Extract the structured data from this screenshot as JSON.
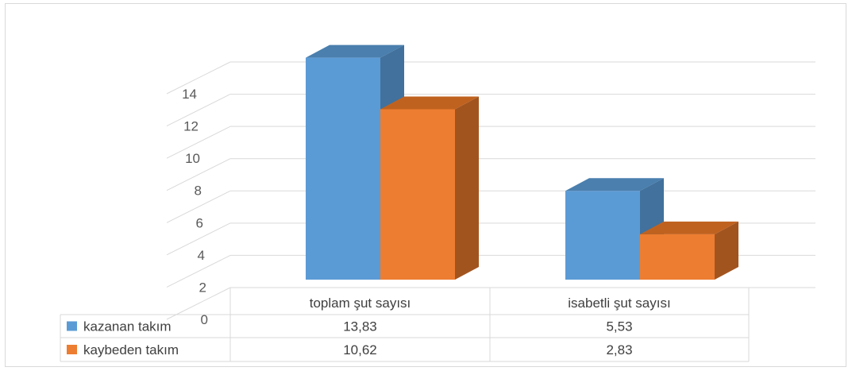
{
  "chart_data": {
    "type": "bar",
    "variant": "3d-clustered-column-with-data-table",
    "categories": [
      "toplam şut sayısı",
      "isabetli şut sayısı"
    ],
    "series": [
      {
        "name": "kazanan takım",
        "values": [
          13.83,
          5.53
        ],
        "labels": [
          "13,83",
          "5,53"
        ],
        "color": "#5b9bd5",
        "color_side": "#41719c",
        "color_top": "#4a7fae"
      },
      {
        "name": "kaybeden takım",
        "values": [
          10.62,
          2.83
        ],
        "labels": [
          "10,62",
          "2,83"
        ],
        "color": "#ed7d31",
        "color_side": "#a2541f",
        "color_top": "#c0621f"
      }
    ],
    "yticks": [
      "0",
      "2",
      "4",
      "6",
      "8",
      "10",
      "12",
      "14"
    ],
    "ylim": [
      0,
      14
    ],
    "grid": true,
    "legend": "data-table-left",
    "title": "",
    "xlabel": "",
    "ylabel": ""
  }
}
